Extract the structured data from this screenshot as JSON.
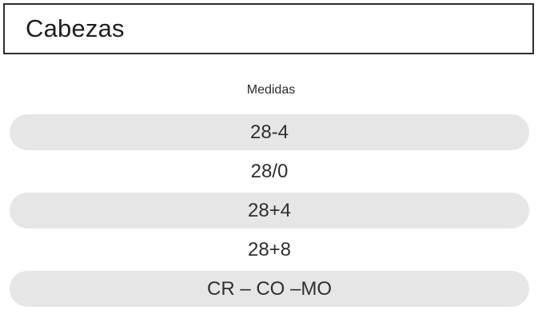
{
  "header": {
    "title": "Cabezas"
  },
  "section": {
    "label": "Medidas"
  },
  "measures": [
    {
      "label": "28-4",
      "shaded": true
    },
    {
      "label": "28/0",
      "shaded": false
    },
    {
      "label": "28+4",
      "shaded": true
    },
    {
      "label": "28+8",
      "shaded": false
    },
    {
      "label": "CR – CO –MO",
      "shaded": true
    }
  ],
  "colors": {
    "row_shade": "#e6e6e6",
    "border": "#2e2e2e",
    "text": "#2f2f2f"
  }
}
